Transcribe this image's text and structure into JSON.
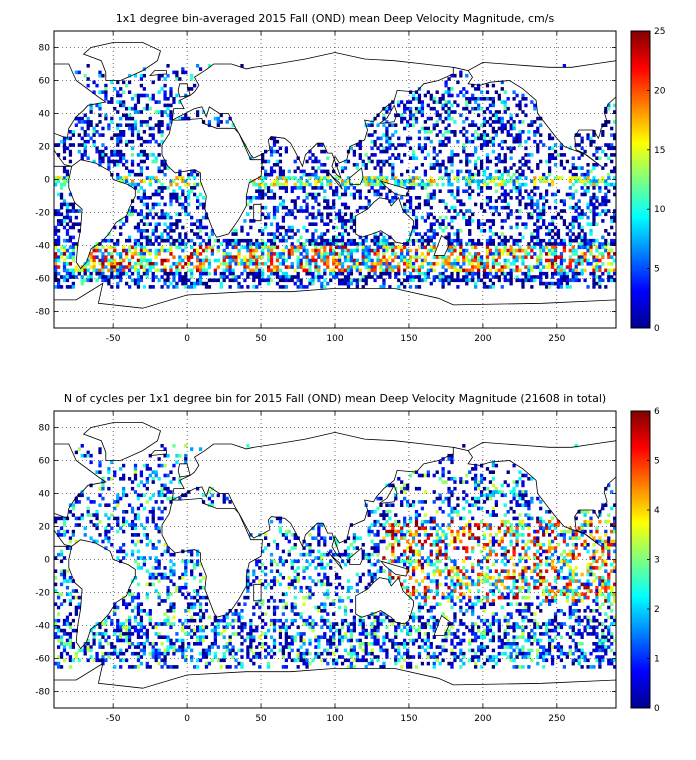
{
  "chart_data": [
    {
      "type": "heatmap",
      "title": "1x1 degree bin-averaged 2015 Fall (OND) mean Deep Velocity Magnitude, cm/s",
      "xlabel": "",
      "ylabel": "",
      "xlim": [
        -90,
        290
      ],
      "ylim": [
        -90,
        90
      ],
      "x_ticks": [
        -50,
        0,
        50,
        100,
        150,
        200,
        250
      ],
      "y_ticks": [
        -80,
        -60,
        -40,
        -20,
        0,
        20,
        40,
        60,
        80
      ],
      "grid": true,
      "colorbar": {
        "min": 0,
        "max": 25,
        "ticks": [
          0,
          5,
          10,
          15,
          20,
          25
        ],
        "colormap": "jet"
      }
    },
    {
      "type": "heatmap",
      "title": "N of cycles per 1x1 degree bin for 2015 Fall (OND) mean Deep Velocity Magnitude (21608 in total)",
      "xlabel": "",
      "ylabel": "",
      "xlim": [
        -90,
        290
      ],
      "ylim": [
        -90,
        90
      ],
      "x_ticks": [
        -50,
        0,
        50,
        100,
        150,
        200,
        250
      ],
      "y_ticks": [
        -80,
        -60,
        -40,
        -20,
        0,
        20,
        40,
        60,
        80
      ],
      "grid": true,
      "colorbar": {
        "min": 0,
        "max": 6,
        "ticks": [
          0,
          1,
          2,
          3,
          4,
          5,
          6
        ],
        "colormap": "jet"
      }
    }
  ]
}
